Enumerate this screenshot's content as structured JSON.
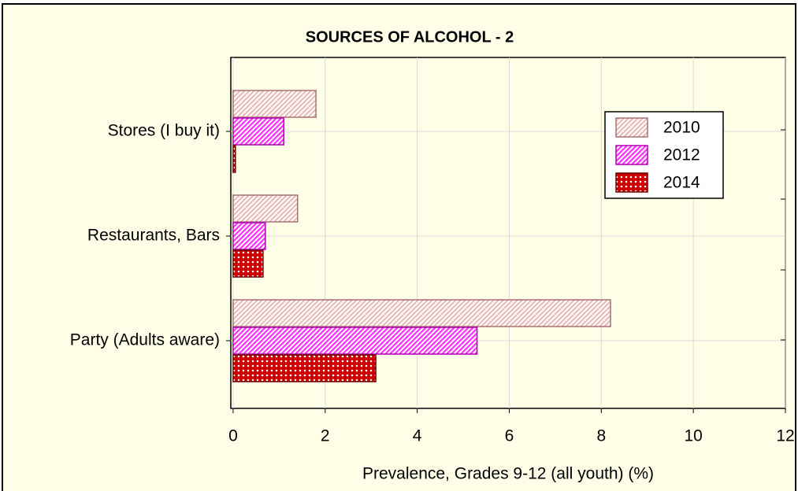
{
  "chart_data": {
    "type": "barh",
    "title": "SOURCES OF ALCOHOL - 2",
    "x_label": "Prevalence, Grades 9-12 (all youth) (%)",
    "categories": [
      "Stores (I buy it)",
      "Restaurants, Bars",
      "Party (Adults aware)"
    ],
    "series": [
      {
        "name": "2010",
        "color": "#e8b4b4",
        "values": [
          1.8,
          1.4,
          8.2
        ]
      },
      {
        "name": "2012",
        "color": "#ff33ff",
        "values": [
          1.1,
          0.7,
          5.3
        ]
      },
      {
        "name": "2014",
        "color": "#cc0000",
        "values": [
          0.05,
          0.65,
          3.1
        ]
      }
    ],
    "xlim": [
      -0.05,
      12
    ],
    "xticks": [
      0,
      2,
      4,
      6,
      8,
      10,
      12
    ],
    "grid": true,
    "legend": "upper right"
  }
}
